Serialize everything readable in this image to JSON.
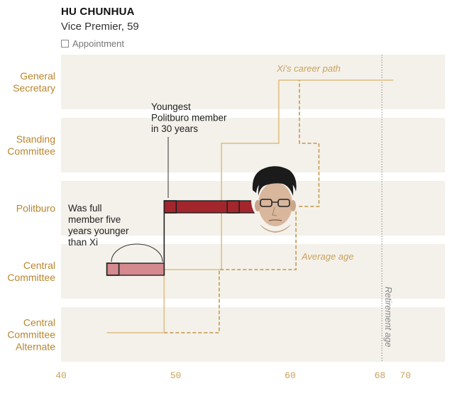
{
  "header": {
    "name": "HU CHUNHUA",
    "subtitle": "Vice Premier, 59",
    "legend_appointment": "Appointment"
  },
  "chart_data": {
    "type": "line",
    "x_axis": {
      "ticks": [
        40,
        50,
        60,
        68,
        70
      ],
      "range": [
        40,
        73.5
      ]
    },
    "rows": [
      {
        "level": 5,
        "label": [
          "General",
          "Secretary"
        ]
      },
      {
        "level": 4,
        "label": [
          "Standing",
          "Committee"
        ]
      },
      {
        "level": 3,
        "label": [
          "Politburo"
        ]
      },
      {
        "level": 2,
        "label": [
          "Central",
          "Committee"
        ]
      },
      {
        "level": 1,
        "label": [
          "Central",
          "Committee",
          "Alternate"
        ]
      }
    ],
    "series": [
      {
        "name": "Hu Chunhua",
        "color": "#a3262d",
        "points": [
          [
            44,
            2
          ],
          [
            49,
            2
          ],
          [
            49,
            3
          ],
          [
            57,
            3
          ]
        ],
        "appointments": [
          [
            44,
            2
          ],
          [
            49,
            3
          ],
          [
            54.5,
            3
          ]
        ]
      },
      {
        "name": "Xi's career path",
        "color": "#e2c48e",
        "points": [
          [
            44,
            1
          ],
          [
            49,
            1
          ],
          [
            49,
            2
          ],
          [
            54,
            2
          ],
          [
            54,
            4
          ],
          [
            59,
            4
          ],
          [
            59,
            5
          ],
          [
            69,
            5
          ]
        ]
      },
      {
        "name": "Average age",
        "color": "#c9a35c",
        "points": [
          [
            49,
            1
          ],
          [
            53.8,
            1
          ],
          [
            53.8,
            2
          ],
          [
            60.5,
            2
          ],
          [
            60.5,
            3
          ],
          [
            62.5,
            3
          ],
          [
            62.5,
            4
          ],
          [
            60.8,
            4
          ],
          [
            60.8,
            5
          ]
        ]
      }
    ],
    "retirement_age": {
      "x": 68,
      "label": "Retirement age"
    },
    "annotations": {
      "youngest": [
        "Youngest",
        "Politburo member",
        "in 30 years"
      ],
      "full_member": [
        "Was full",
        "member five",
        "years younger",
        "than Xi"
      ],
      "xi_path": "Xi's career path",
      "average_age": "Average age"
    }
  }
}
